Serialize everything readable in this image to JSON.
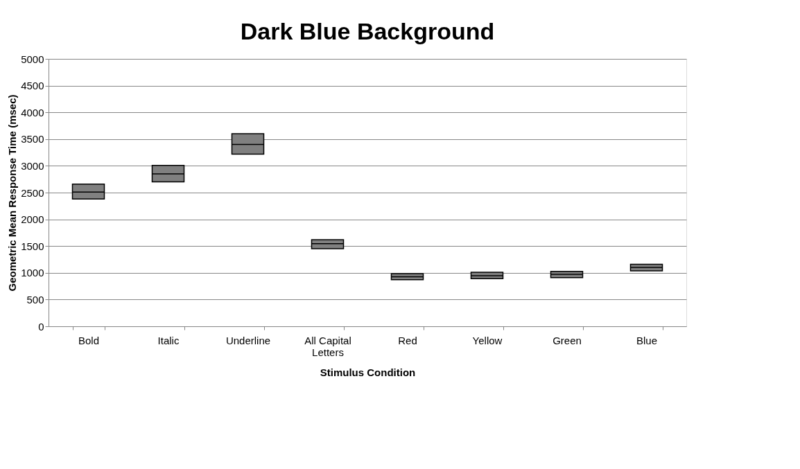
{
  "chart_data": {
    "type": "box",
    "title": "Dark Blue Background",
    "xlabel": "Stimulus Condition",
    "ylabel": "Geometric Mean Response Time (msec)",
    "categories": [
      "Bold",
      "Italic",
      "Underline",
      "All Capital Letters",
      "Red",
      "Yellow",
      "Green",
      "Blue"
    ],
    "boxes": [
      {
        "low": 2380,
        "q1": 2380,
        "median": 2510,
        "q3": 2660,
        "high": 2660
      },
      {
        "low": 2700,
        "q1": 2700,
        "median": 2850,
        "q3": 3010,
        "high": 3010
      },
      {
        "low": 3220,
        "q1": 3220,
        "median": 3400,
        "q3": 3600,
        "high": 3600
      },
      {
        "low": 1450,
        "q1": 1450,
        "median": 1545,
        "q3": 1620,
        "high": 1620
      },
      {
        "low": 870,
        "q1": 870,
        "median": 925,
        "q3": 985,
        "high": 985
      },
      {
        "low": 890,
        "q1": 890,
        "median": 945,
        "q3": 1010,
        "high": 1010
      },
      {
        "low": 910,
        "q1": 910,
        "median": 970,
        "q3": 1025,
        "high": 1025
      },
      {
        "low": 1035,
        "q1": 1035,
        "median": 1100,
        "q3": 1160,
        "high": 1160
      }
    ],
    "color": "#808080",
    "ylim": [
      0,
      5000
    ],
    "yticks": [
      0,
      500,
      1000,
      1500,
      2000,
      2500,
      3000,
      3500,
      4000,
      4500,
      5000
    ],
    "grid": "y"
  }
}
